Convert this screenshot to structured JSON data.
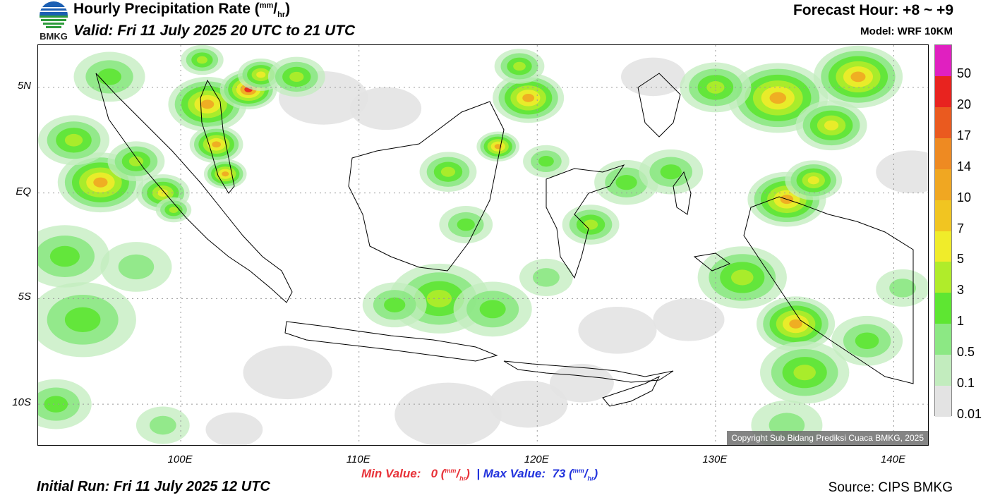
{
  "header": {
    "logo_text": "BMKG",
    "title_main": "Hourly Precipitation Rate (",
    "title_unit_sup": "mm",
    "title_unit_slash": "/",
    "title_unit_sub": "hr",
    "title_close": ")",
    "valid": "Valid: Fri 11 July 2025 20 UTC to 21 UTC",
    "forecast_hour": "Forecast Hour: +8 ~ +9",
    "model": "Model: WRF 10KM"
  },
  "axes": {
    "y_labels": [
      "5N",
      "EQ",
      "5S",
      "10S"
    ],
    "x_labels": [
      "100E",
      "110E",
      "120E",
      "130E",
      "140E"
    ],
    "lon_range": [
      92,
      142
    ],
    "lat_range": [
      -12,
      7
    ]
  },
  "stats": {
    "min_label": "Min Value:",
    "min_value": "0",
    "max_label": "Max Value:",
    "max_value": "73",
    "unit_sup": "mm",
    "unit_slash": "/",
    "unit_sub": "hr",
    "separator": "|"
  },
  "footer": {
    "initial_run": "Initial Run: Fri 11 July 2025 12 UTC",
    "source": "Source: CIPS BMKG",
    "copyright": "Copyright Sub Bidang Prediksi Cuaca BMKG, 2025"
  },
  "colorbar": {
    "labels": [
      "50",
      "20",
      "17",
      "14",
      "10",
      "7",
      "5",
      "3",
      "1",
      "0.5",
      "0.1",
      "0.01"
    ],
    "colors": [
      "#e020c0",
      "#e8231f",
      "#ea5a1f",
      "#ee8a22",
      "#f0a722",
      "#f1c521",
      "#f0ec2a",
      "#b0ec2a",
      "#5ee632",
      "#8ce884",
      "#c2ecbe",
      "#e3e3e3"
    ]
  },
  "precip_cells": [
    {
      "lon": 101.5,
      "lat": 4.2,
      "r": 2.2,
      "i": 0.9
    },
    {
      "lon": 103.8,
      "lat": 4.9,
      "r": 1.6,
      "i": 1.0
    },
    {
      "lon": 104.5,
      "lat": 5.6,
      "r": 1.3,
      "i": 0.7
    },
    {
      "lon": 102.0,
      "lat": 2.3,
      "r": 1.5,
      "i": 0.9
    },
    {
      "lon": 102.5,
      "lat": 0.9,
      "r": 1.2,
      "i": 0.9
    },
    {
      "lon": 95.5,
      "lat": 0.5,
      "r": 2.4,
      "i": 0.8
    },
    {
      "lon": 94.0,
      "lat": 2.5,
      "r": 2.0,
      "i": 0.6
    },
    {
      "lon": 97.5,
      "lat": 1.5,
      "r": 1.6,
      "i": 0.5
    },
    {
      "lon": 99.0,
      "lat": 0.0,
      "r": 1.5,
      "i": 0.7
    },
    {
      "lon": 99.6,
      "lat": -0.8,
      "r": 1.0,
      "i": 0.6
    },
    {
      "lon": 93.5,
      "lat": -3.0,
      "r": 2.5,
      "i": 0.4
    },
    {
      "lon": 94.5,
      "lat": -6.0,
      "r": 3.0,
      "i": 0.4
    },
    {
      "lon": 93.0,
      "lat": -10.0,
      "r": 2.0,
      "i": 0.45
    },
    {
      "lon": 97.5,
      "lat": -3.5,
      "r": 2.0,
      "i": 0.3
    },
    {
      "lon": 99.0,
      "lat": -11.0,
      "r": 1.5,
      "i": 0.35
    },
    {
      "lon": 96.0,
      "lat": 5.5,
      "r": 2.0,
      "i": 0.4
    },
    {
      "lon": 101.2,
      "lat": 6.3,
      "r": 1.2,
      "i": 0.6
    },
    {
      "lon": 106.5,
      "lat": 5.5,
      "r": 1.6,
      "i": 0.5
    },
    {
      "lon": 119.5,
      "lat": 4.5,
      "r": 2.0,
      "i": 0.8
    },
    {
      "lon": 119.0,
      "lat": 6.0,
      "r": 1.4,
      "i": 0.6
    },
    {
      "lon": 117.8,
      "lat": 2.2,
      "r": 1.2,
      "i": 0.8
    },
    {
      "lon": 115.0,
      "lat": 1.0,
      "r": 1.6,
      "i": 0.6
    },
    {
      "lon": 116.0,
      "lat": -1.5,
      "r": 1.5,
      "i": 0.4
    },
    {
      "lon": 114.5,
      "lat": -5.0,
      "r": 2.8,
      "i": 0.5
    },
    {
      "lon": 117.5,
      "lat": -5.5,
      "r": 2.2,
      "i": 0.45
    },
    {
      "lon": 112.0,
      "lat": -5.3,
      "r": 1.8,
      "i": 0.4
    },
    {
      "lon": 120.5,
      "lat": -4.0,
      "r": 1.5,
      "i": 0.35
    },
    {
      "lon": 123.0,
      "lat": -1.5,
      "r": 1.6,
      "i": 0.6
    },
    {
      "lon": 125.0,
      "lat": 0.5,
      "r": 1.8,
      "i": 0.45
    },
    {
      "lon": 127.5,
      "lat": 1.0,
      "r": 1.8,
      "i": 0.45
    },
    {
      "lon": 120.5,
      "lat": 1.5,
      "r": 1.3,
      "i": 0.4
    },
    {
      "lon": 133.5,
      "lat": 4.5,
      "r": 2.8,
      "i": 0.8
    },
    {
      "lon": 138.0,
      "lat": 5.5,
      "r": 2.5,
      "i": 0.9
    },
    {
      "lon": 136.5,
      "lat": 3.2,
      "r": 2.0,
      "i": 0.7
    },
    {
      "lon": 130.0,
      "lat": 5.0,
      "r": 2.0,
      "i": 0.5
    },
    {
      "lon": 134.0,
      "lat": -0.3,
      "r": 2.2,
      "i": 0.85
    },
    {
      "lon": 135.5,
      "lat": 0.6,
      "r": 1.6,
      "i": 0.7
    },
    {
      "lon": 131.5,
      "lat": -4.0,
      "r": 2.5,
      "i": 0.5
    },
    {
      "lon": 134.5,
      "lat": -6.2,
      "r": 2.2,
      "i": 0.9
    },
    {
      "lon": 135.0,
      "lat": -8.5,
      "r": 2.5,
      "i": 0.55
    },
    {
      "lon": 138.5,
      "lat": -7.0,
      "r": 2.0,
      "i": 0.45
    },
    {
      "lon": 140.5,
      "lat": -4.5,
      "r": 1.5,
      "i": 0.35
    },
    {
      "lon": 134.0,
      "lat": -11.0,
      "r": 2.0,
      "i": 0.35
    }
  ],
  "light_areas": [
    {
      "lon": 106.0,
      "lat": -8.5,
      "r": 2.5
    },
    {
      "lon": 115.0,
      "lat": -10.5,
      "r": 3.0
    },
    {
      "lon": 119.5,
      "lat": -10.0,
      "r": 2.2
    },
    {
      "lon": 108.0,
      "lat": 4.5,
      "r": 2.5
    },
    {
      "lon": 111.5,
      "lat": 4.0,
      "r": 2.0
    },
    {
      "lon": 124.5,
      "lat": -6.5,
      "r": 2.2
    },
    {
      "lon": 128.5,
      "lat": -6.0,
      "r": 2.0
    },
    {
      "lon": 126.5,
      "lat": 5.5,
      "r": 1.8
    },
    {
      "lon": 141.0,
      "lat": 1.0,
      "r": 2.0
    },
    {
      "lon": 103.0,
      "lat": -11.2,
      "r": 1.6
    },
    {
      "lon": 122.5,
      "lat": -9.0,
      "r": 1.8
    }
  ]
}
